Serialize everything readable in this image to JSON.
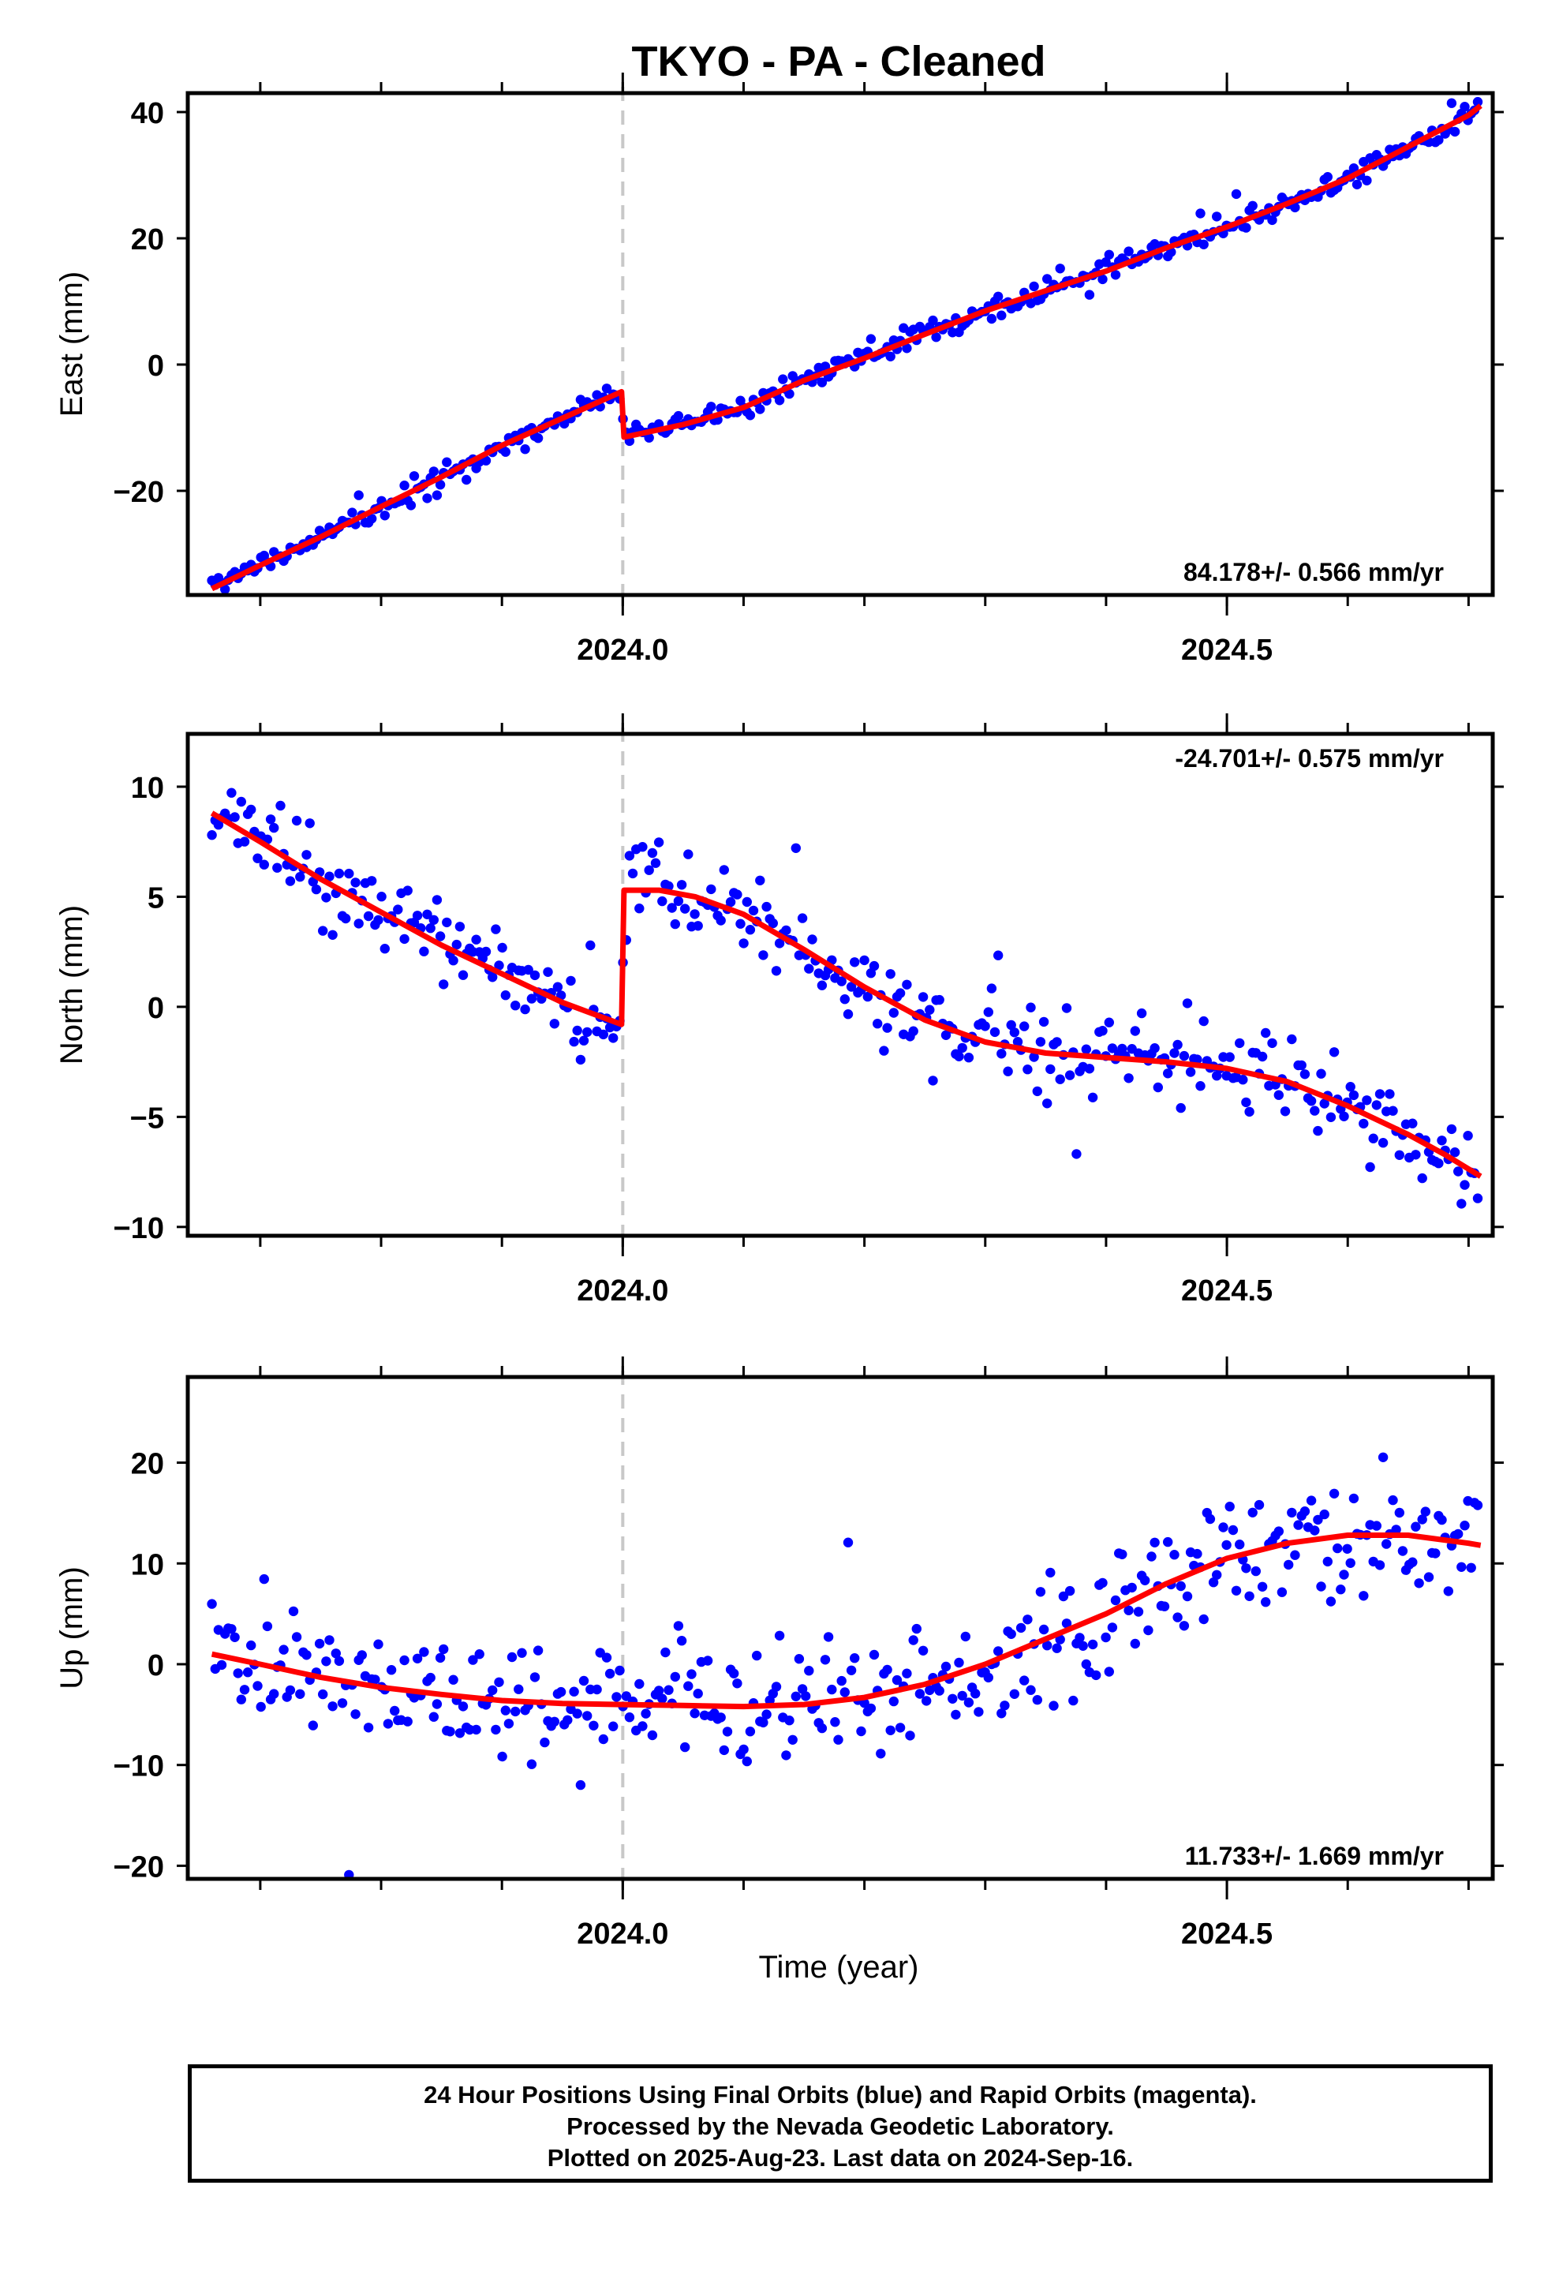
{
  "title": "TKYO  - PA - Cleaned",
  "xlabel": "Time (year)",
  "footer": {
    "line1": "24 Hour Positions Using Final Orbits (blue) and Rapid Orbits (magenta).",
    "line2": "Processed by the Nevada Geodetic Laboratory.",
    "line3": "Plotted on 2025-Aug-23. Last data on 2024-Sep-16."
  },
  "colors": {
    "points": "#0000ff",
    "fit": "#ff0000",
    "event_line": "#c8c8c8"
  },
  "chart_data": [
    {
      "type": "scatter",
      "component": "east",
      "ylabel": "East (mm)",
      "xlim": [
        2023.64,
        2024.72
      ],
      "ylim": [
        -36.5,
        43
      ],
      "yticks": [
        -20,
        0,
        20,
        40
      ],
      "xticks": [
        2024.0,
        2024.5
      ],
      "xtick_labels": [
        "2024.0",
        "2024.5"
      ],
      "event_line_x": 2024.0,
      "rate_text": "84.178+/- 0.566 mm/yr",
      "rate_position": "bottom-right",
      "fit_x": [
        2023.66,
        2023.7,
        2023.75,
        2023.8,
        2023.85,
        2023.9,
        2023.95,
        2023.999,
        2024.001,
        2024.05,
        2024.1,
        2024.15,
        2024.2,
        2024.25,
        2024.3,
        2024.35,
        2024.4,
        2024.45,
        2024.5,
        2024.55,
        2024.6,
        2024.65,
        2024.7,
        2024.71
      ],
      "fit_y": [
        -35.5,
        -31.8,
        -27.3,
        -22.5,
        -17.8,
        -12.8,
        -8.5,
        -4.3,
        -11.5,
        -9.5,
        -6.8,
        -2.5,
        1.0,
        4.8,
        8.5,
        11.7,
        14.8,
        18.5,
        21.8,
        25.5,
        29.5,
        34.5,
        39.5,
        41.0
      ],
      "points": {
        "start": 2023.66,
        "end": 2024.71,
        "step": 0.0027,
        "seed": 7,
        "noise": 0.9,
        "outlier_rate": 0.03,
        "outlier_scale": 2.2
      }
    },
    {
      "type": "scatter",
      "component": "north",
      "ylabel": "North (mm)",
      "xlim": [
        2023.64,
        2024.72
      ],
      "ylim": [
        -10.4,
        12.4
      ],
      "yticks": [
        -10,
        -5,
        0,
        5,
        10
      ],
      "xticks": [
        2024.0,
        2024.5
      ],
      "xtick_labels": [
        "2024.0",
        "2024.5"
      ],
      "event_line_x": 2024.0,
      "rate_text": "-24.701+/- 0.575 mm/yr",
      "rate_position": "top-right",
      "fit_x": [
        2023.66,
        2023.7,
        2023.75,
        2023.8,
        2023.85,
        2023.9,
        2023.95,
        2023.999,
        2024.001,
        2024.03,
        2024.06,
        2024.1,
        2024.15,
        2024.2,
        2024.25,
        2024.3,
        2024.35,
        2024.4,
        2024.45,
        2024.5,
        2024.55,
        2024.6,
        2024.65,
        2024.68,
        2024.71
      ],
      "fit_y": [
        8.8,
        7.5,
        5.8,
        4.3,
        2.8,
        1.5,
        0.2,
        -0.8,
        5.3,
        5.3,
        5.0,
        4.2,
        2.6,
        0.9,
        -0.6,
        -1.6,
        -2.1,
        -2.3,
        -2.5,
        -2.8,
        -3.4,
        -4.5,
        -5.8,
        -6.7,
        -7.7
      ],
      "points": {
        "start": 2023.66,
        "end": 2024.71,
        "step": 0.0027,
        "seed": 23,
        "noise": 0.9,
        "outlier_rate": 0.05,
        "outlier_scale": 2.6
      }
    },
    {
      "type": "scatter",
      "component": "up",
      "ylabel": "Up (mm)",
      "xlim": [
        2023.64,
        2024.72
      ],
      "ylim": [
        -21.3,
        28.5
      ],
      "yticks": [
        -20,
        -10,
        0,
        10,
        20
      ],
      "xticks": [
        2024.0,
        2024.5
      ],
      "xtick_labels": [
        "2024.0",
        "2024.5"
      ],
      "event_line_x": 2024.0,
      "rate_text": "11.733+/- 1.669 mm/yr",
      "rate_position": "bottom-right",
      "fit_x": [
        2023.66,
        2023.7,
        2023.75,
        2023.8,
        2023.85,
        2023.9,
        2023.95,
        2024.0,
        2024.05,
        2024.1,
        2024.15,
        2024.2,
        2024.25,
        2024.3,
        2024.35,
        2024.4,
        2024.45,
        2024.5,
        2024.55,
        2024.6,
        2024.65,
        2024.7,
        2024.71
      ],
      "fit_y": [
        1.0,
        0.0,
        -1.3,
        -2.3,
        -3.0,
        -3.6,
        -3.9,
        -4.0,
        -4.1,
        -4.2,
        -4.0,
        -3.3,
        -2.0,
        0.0,
        2.5,
        5.0,
        8.0,
        10.5,
        12.0,
        12.8,
        12.8,
        12.0,
        11.8
      ],
      "points": {
        "start": 2023.66,
        "end": 2024.71,
        "step": 0.0027,
        "seed": 41,
        "noise": 3.0,
        "outlier_rate": 0.04,
        "outlier_scale": 2.5
      }
    }
  ]
}
